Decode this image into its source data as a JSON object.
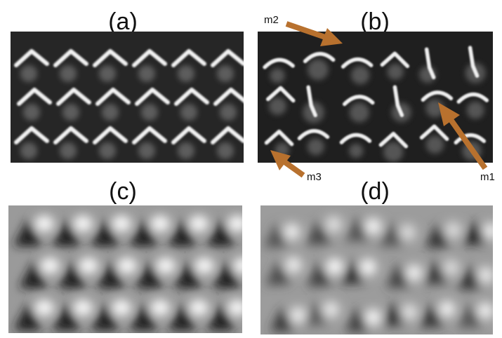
{
  "figure": {
    "panels": [
      {
        "id": "a",
        "label": "(a)",
        "style": "sharp"
      },
      {
        "id": "b",
        "label": "(b)",
        "style": "sharp-noisy"
      },
      {
        "id": "c",
        "label": "(c)",
        "style": "blurred"
      },
      {
        "id": "d",
        "label": "(d)",
        "style": "blurred-noisy"
      }
    ],
    "annotations": [
      {
        "label": "m1",
        "panel": "b"
      },
      {
        "label": "m2",
        "panel": "b"
      },
      {
        "label": "m3",
        "panel": "b"
      }
    ],
    "colors": {
      "arrow": "#b8712e",
      "background": "#ffffff",
      "panel_dark": "#1c1c1c"
    }
  }
}
